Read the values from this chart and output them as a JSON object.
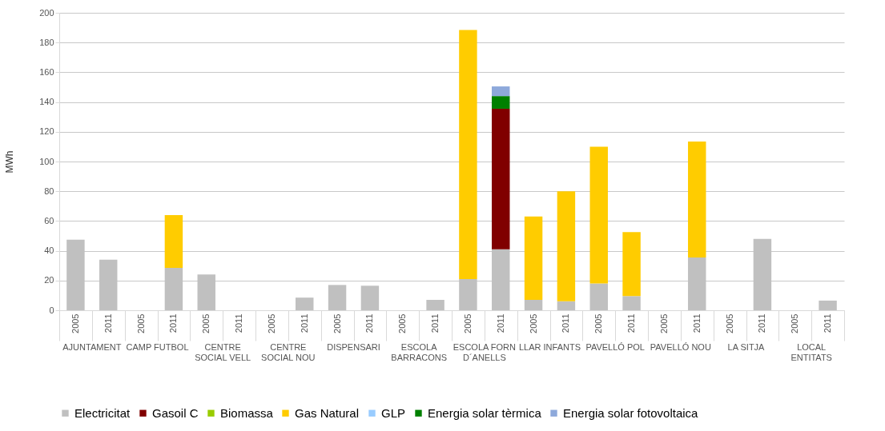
{
  "chart_data": {
    "type": "bar",
    "stacked": true,
    "ylabel": "MWh",
    "ylim": [
      0,
      200
    ],
    "yticks": [
      0,
      20,
      40,
      60,
      80,
      100,
      120,
      140,
      160,
      180,
      200
    ],
    "grid": "y",
    "legend": "bottom",
    "categories": [
      "2005",
      "2011",
      "2005",
      "2011",
      "2005",
      "2011",
      "2005",
      "2011",
      "2005",
      "2011",
      "2005",
      "2011",
      "2005",
      "2011",
      "2005",
      "2011",
      "2005",
      "2011",
      "2005",
      "2011",
      "2005",
      "2011",
      "2005",
      "2011"
    ],
    "annotations": [
      "AJUNTAMENT",
      "CAMP FUTBOL",
      "CENTRE SOCIAL VELL",
      "CENTRE SOCIAL NOU",
      "DISPENSARI",
      "ESCOLA BARRACONS",
      "ESCOLA FORN D´ANELLS",
      "LLAR INFANTS",
      "PAVELLÓ POL",
      "PAVELLÓ NOU",
      "LA SITJA",
      "LOCAL ENTITATS"
    ],
    "series": [
      {
        "name": "Electricitat",
        "color": "#c0c0c0",
        "values": [
          47.5,
          34,
          null,
          28.5,
          24,
          null,
          null,
          8.5,
          17,
          16.5,
          null,
          7,
          21,
          41,
          7,
          6,
          18,
          9.5,
          null,
          35.5,
          null,
          48,
          null,
          6.5
        ]
      },
      {
        "name": "Gasoil C",
        "color": "#800000",
        "values": [
          null,
          null,
          null,
          null,
          null,
          null,
          null,
          null,
          null,
          null,
          null,
          null,
          null,
          94.5,
          null,
          null,
          null,
          null,
          null,
          null,
          null,
          null,
          null,
          null
        ]
      },
      {
        "name": "Biomassa",
        "color": "#99cc00",
        "values": [
          null,
          null,
          null,
          null,
          null,
          null,
          null,
          null,
          null,
          null,
          null,
          null,
          null,
          null,
          null,
          null,
          null,
          null,
          null,
          null,
          null,
          null,
          null,
          null
        ]
      },
      {
        "name": "Gas Natural",
        "color": "#ffcc00",
        "values": [
          null,
          null,
          null,
          35.5,
          null,
          null,
          null,
          null,
          null,
          null,
          null,
          null,
          167.5,
          null,
          56,
          74,
          92,
          43,
          null,
          78,
          null,
          null,
          null,
          null
        ]
      },
      {
        "name": "GLP",
        "color": "#99ccff",
        "values": [
          null,
          null,
          null,
          null,
          null,
          null,
          null,
          null,
          null,
          null,
          null,
          null,
          null,
          null,
          null,
          null,
          null,
          null,
          null,
          null,
          null,
          null,
          null,
          null
        ]
      },
      {
        "name": "Energia solar tèrmica",
        "color": "#008000",
        "values": [
          null,
          null,
          null,
          null,
          null,
          null,
          null,
          null,
          null,
          null,
          null,
          null,
          null,
          8.5,
          null,
          null,
          null,
          null,
          null,
          null,
          null,
          null,
          null,
          null
        ]
      },
      {
        "name": "Energia solar fotovoltaica",
        "color": "#8ea9db",
        "values": [
          null,
          null,
          null,
          null,
          null,
          null,
          null,
          null,
          null,
          null,
          null,
          null,
          null,
          6.5,
          null,
          null,
          null,
          null,
          null,
          null,
          null,
          null,
          null,
          null
        ]
      }
    ]
  }
}
